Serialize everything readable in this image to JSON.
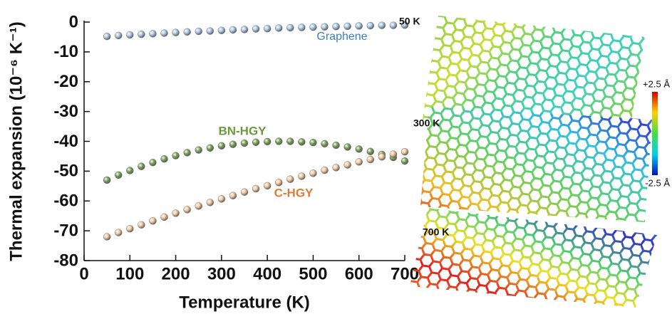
{
  "chart_data": {
    "type": "scatter",
    "ylabel": "Thermal expansion (10⁻⁶ K⁻¹)",
    "xlabel": "Temperature (K)",
    "xlim": [
      0,
      700
    ],
    "xticks": [
      0,
      100,
      200,
      300,
      400,
      500,
      600,
      700
    ],
    "ylim": [
      -80,
      0
    ],
    "yticks": [
      0,
      -10,
      -20,
      -30,
      -40,
      -50,
      -60,
      -70,
      -80
    ],
    "x": [
      50,
      75,
      100,
      125,
      150,
      175,
      200,
      225,
      250,
      275,
      300,
      325,
      350,
      375,
      400,
      425,
      450,
      475,
      500,
      525,
      550,
      575,
      600,
      625,
      650,
      675,
      700
    ],
    "series": [
      {
        "name": "Graphene",
        "color": "#a9c6e6",
        "label_color": "#3d7fb5",
        "values": [
          -4.8,
          -4.5,
          -4.3,
          -4.1,
          -3.9,
          -3.7,
          -3.5,
          -3.3,
          -3.1,
          -3.0,
          -2.8,
          -2.6,
          -2.5,
          -2.3,
          -2.2,
          -2.0,
          -1.9,
          -1.8,
          -1.7,
          -1.6,
          -1.5,
          -1.4,
          -1.3,
          -1.2,
          -1.1,
          -1.1,
          -1.0
        ]
      },
      {
        "name": "BN-HGY",
        "color": "#76a157",
        "label_color": "#6a9a3c",
        "values": [
          -53.0,
          -51.3,
          -49.8,
          -48.4,
          -47.1,
          -45.9,
          -44.8,
          -43.8,
          -42.9,
          -42.2,
          -41.5,
          -41.0,
          -40.6,
          -40.3,
          -40.1,
          -40.0,
          -40.0,
          -40.2,
          -40.4,
          -40.8,
          -41.3,
          -41.9,
          -42.6,
          -43.4,
          -44.4,
          -45.4,
          -46.6
        ]
      },
      {
        "name": "C-HGY",
        "color": "#f4c49c",
        "label_color": "#e07b39",
        "values": [
          -72.0,
          -70.6,
          -69.3,
          -68.0,
          -66.7,
          -65.4,
          -64.1,
          -62.9,
          -61.7,
          -60.5,
          -59.3,
          -58.2,
          -57.0,
          -55.9,
          -54.9,
          -53.8,
          -52.7,
          -51.7,
          -50.7,
          -49.7,
          -48.8,
          -47.9,
          -46.9,
          -46.1,
          -45.2,
          -44.3,
          -43.5
        ]
      }
    ]
  },
  "panel": {
    "labels": [
      "50 K",
      "300 K",
      "700 K"
    ],
    "colorbar": {
      "max_label": "+2.5 Å",
      "min_label": "-2.5 Å"
    }
  }
}
